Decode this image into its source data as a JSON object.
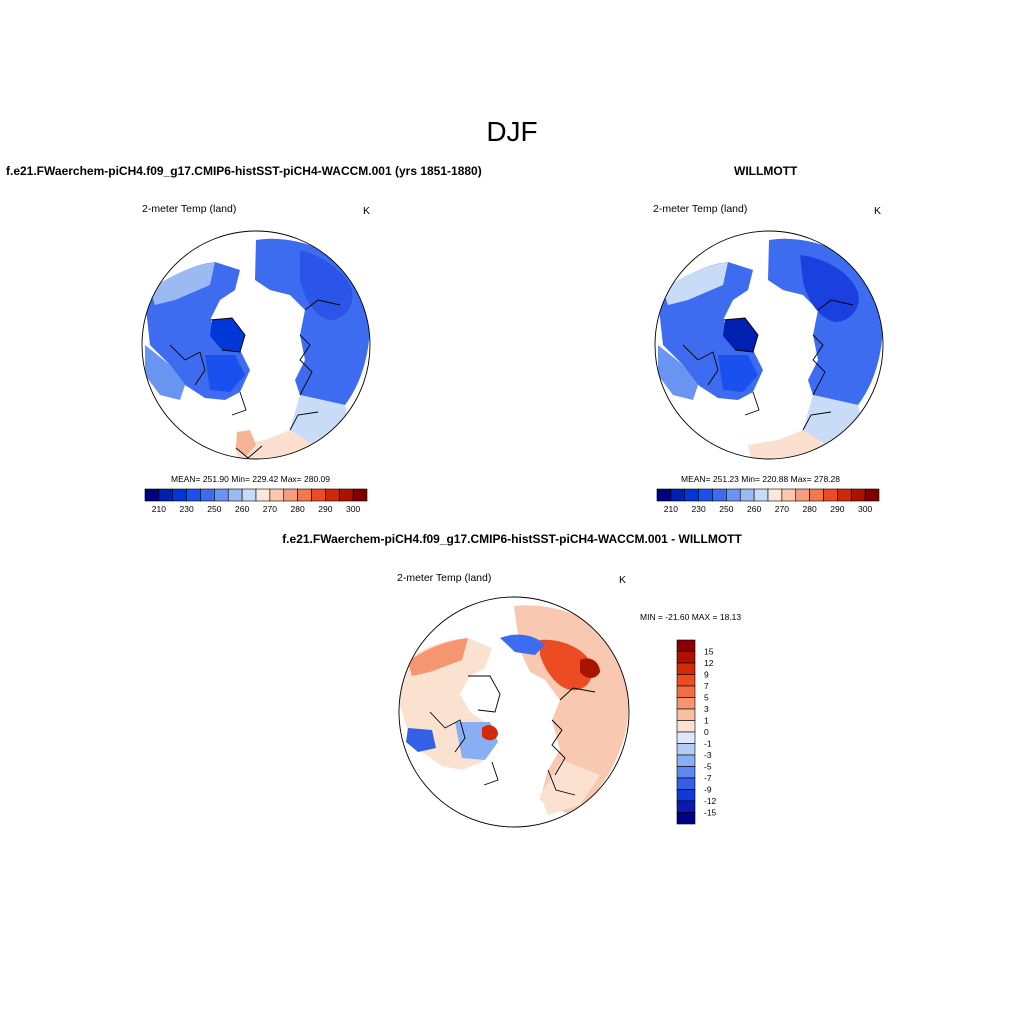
{
  "figure": {
    "title": "DJF"
  },
  "panels": [
    {
      "title": "f.e21.FWaerchem-piCH4.f09_g17.CMIP6-histSST-piCH4-WACCM.001 (yrs 1851-1880)",
      "variable": "2-meter Temp (land)",
      "units": "K",
      "stats": "MEAN= 251.90  Min= 229.42  Max= 280.09",
      "colorbar": {
        "orientation": "horizontal",
        "tick_labels": [
          "210",
          "230",
          "250",
          "260",
          "270",
          "280",
          "290",
          "300"
        ],
        "colors": [
          "#00007f",
          "#0020b0",
          "#0038d8",
          "#1a50f0",
          "#3c6cf0",
          "#6a94f2",
          "#9bbaf4",
          "#c8dcf8",
          "#fbe8dc",
          "#f8c8b0",
          "#f4a07c",
          "#f27850",
          "#ec4c22",
          "#d02808",
          "#a81400",
          "#7f0000"
        ]
      }
    },
    {
      "title": "WILLMOTT",
      "variable": "2-meter Temp (land)",
      "units": "K",
      "stats": "MEAN= 251.23  Min= 220.88  Max= 278.28",
      "colorbar": {
        "orientation": "horizontal",
        "tick_labels": [
          "210",
          "230",
          "250",
          "260",
          "270",
          "280",
          "290",
          "300"
        ],
        "colors": [
          "#00007f",
          "#0020b0",
          "#0038d8",
          "#1a50f0",
          "#3c6cf0",
          "#6a94f2",
          "#9bbaf4",
          "#c8dcf8",
          "#fbe8dc",
          "#f8c8b0",
          "#f4a07c",
          "#f27850",
          "#ec4c22",
          "#d02808",
          "#a81400",
          "#7f0000"
        ]
      }
    },
    {
      "title": "f.e21.FWaerchem-piCH4.f09_g17.CMIP6-histSST-piCH4-WACCM.001 - WILLMOTT",
      "variable": "2-meter Temp (land)",
      "units": "K",
      "stats": "MIN = -21.60 MAX =  18.13",
      "colorbar": {
        "orientation": "vertical",
        "tick_labels": [
          "15",
          "12",
          "9",
          "7",
          "5",
          "3",
          "1",
          "0",
          "-1",
          "-3",
          "-5",
          "-7",
          "-9",
          "-12",
          "-15"
        ],
        "colors": [
          "#8a0000",
          "#b01000",
          "#d02a06",
          "#ec4c22",
          "#f26e44",
          "#f59670",
          "#f8bea0",
          "#fbe2d0",
          "#dce8f8",
          "#b4cdf6",
          "#8aaef4",
          "#5e88f0",
          "#3460e8",
          "#1238d8",
          "#0a1ab0",
          "#000088"
        ]
      }
    }
  ],
  "legend_colors": {
    "land_fill_ocean": "#ffffff",
    "coastline": "#000000"
  }
}
